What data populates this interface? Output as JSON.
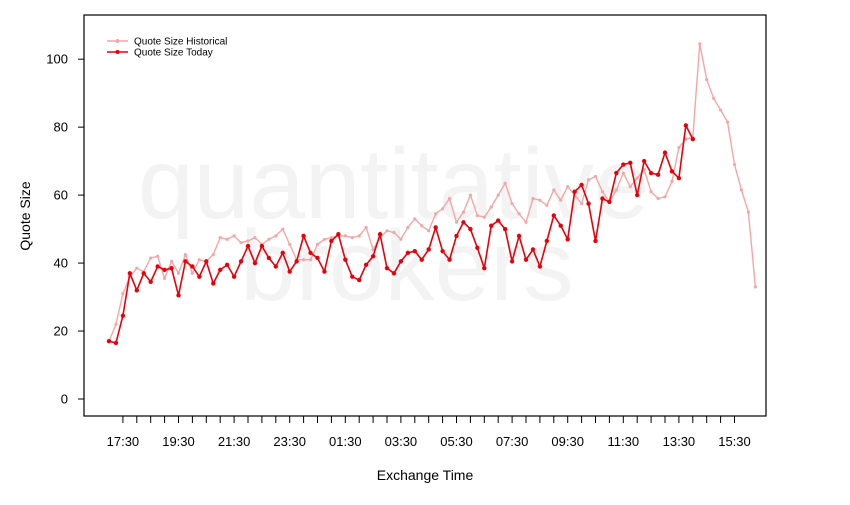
{
  "watermark": {
    "line1": "quantitative",
    "line2": "brokers"
  },
  "chart_data": {
    "type": "line",
    "xlabel": "Exchange Time",
    "ylabel": "Quote Size",
    "ylim": [
      -5,
      113
    ],
    "yticks": [
      0,
      20,
      40,
      60,
      80,
      100
    ],
    "x_start": "17:00",
    "x_step_minutes": 15,
    "x_tick_labels": [
      "17:30",
      "19:30",
      "21:30",
      "23:30",
      "01:30",
      "03:30",
      "05:30",
      "07:30",
      "09:30",
      "11:30",
      "13:30",
      "15:30"
    ],
    "x_tick_indices": [
      2,
      10,
      18,
      26,
      34,
      42,
      50,
      58,
      66,
      74,
      82,
      90
    ],
    "x_minor_tick_indices": [
      2,
      4,
      6,
      8,
      10,
      12,
      14,
      16,
      18,
      20,
      22,
      24,
      26,
      28,
      30,
      32,
      34,
      36,
      38,
      40,
      42,
      44,
      46,
      48,
      50,
      52,
      54,
      56,
      58,
      60,
      62,
      64,
      66,
      68,
      70,
      72,
      74,
      76,
      78,
      80,
      82,
      84,
      86,
      88,
      90
    ],
    "legend_position": "top-left",
    "series": [
      {
        "name": "Quote Size Historical",
        "color": "#f4a6a6",
        "values": [
          17.0,
          22.0,
          31.0,
          36.0,
          38.5,
          37.5,
          41.5,
          42.0,
          35.5,
          40.5,
          37.0,
          42.5,
          37.0,
          41.0,
          40.5,
          42.5,
          47.5,
          47.0,
          48.0,
          46.0,
          46.5,
          47.5,
          45.5,
          47.0,
          48.0,
          50.0,
          45.5,
          41.0,
          41.0,
          41.0,
          45.5,
          47.0,
          47.5,
          48.0,
          48.0,
          47.5,
          48.0,
          50.5,
          44.0,
          47.5,
          49.5,
          49.0,
          47.0,
          50.5,
          53.0,
          51.0,
          49.5,
          54.5,
          56.0,
          59.0,
          52.0,
          55.0,
          60.0,
          54.0,
          53.5,
          56.5,
          60.0,
          63.5,
          57.5,
          54.5,
          52.0,
          59.0,
          58.5,
          57.0,
          61.5,
          58.5,
          62.5,
          60.0,
          57.5,
          64.5,
          65.5,
          61.0,
          58.0,
          61.5,
          66.5,
          62.5,
          65.0,
          67.5,
          61.0,
          59.0,
          59.5,
          64.0,
          74.0,
          76.5,
          77.0,
          104.5,
          94.0,
          88.5,
          85.0,
          81.5,
          69.0,
          61.5,
          55.0,
          33.0
        ]
      },
      {
        "name": "Quote Size Today",
        "color": "#e8000b",
        "values": [
          17.0,
          16.5,
          24.5,
          37.0,
          32.0,
          37.0,
          34.5,
          39.0,
          38.0,
          38.5,
          30.5,
          40.5,
          39.0,
          36.0,
          40.5,
          34.0,
          38.0,
          39.5,
          36.0,
          40.5,
          45.0,
          40.0,
          45.0,
          41.5,
          39.0,
          43.0,
          37.5,
          40.5,
          48.0,
          43.0,
          41.5,
          37.5,
          46.5,
          48.5,
          41.0,
          36.0,
          35.0,
          39.5,
          42.0,
          48.5,
          38.5,
          37.0,
          40.5,
          43.0,
          43.5,
          41.0,
          44.0,
          50.5,
          43.5,
          41.0,
          48.0,
          52.0,
          50.0,
          44.5,
          38.5,
          51.0,
          52.5,
          50.0,
          40.5,
          48.0,
          41.0,
          44.0,
          39.0,
          46.5,
          54.0,
          51.0,
          47.0,
          61.0,
          63.0,
          57.5,
          46.5,
          59.0,
          58.0,
          66.5,
          69.0,
          69.5,
          60.0,
          70.0,
          66.5,
          66.0,
          72.5,
          67.0,
          65.0,
          80.5,
          76.5
        ]
      }
    ]
  }
}
